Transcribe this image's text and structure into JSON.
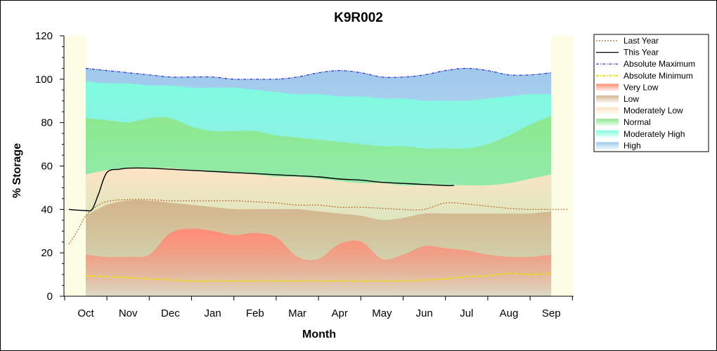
{
  "chart_data": {
    "type": "area",
    "title": "K9R002",
    "xlabel": "Month",
    "ylabel": "% Storage",
    "ylim": [
      0,
      120
    ],
    "yticks": [
      0,
      20,
      40,
      60,
      80,
      100,
      120
    ],
    "categories": [
      "Oct",
      "Nov",
      "Dec",
      "Jan",
      "Feb",
      "Mar",
      "Apr",
      "May",
      "Jun",
      "Jul",
      "Aug",
      "Sep"
    ],
    "grid": false,
    "legend_position": "right",
    "x": [
      0,
      0.5,
      1,
      1.5,
      2,
      2.5,
      3,
      3.5,
      4,
      4.5,
      5,
      5.5,
      6,
      6.5,
      7,
      7.5,
      8,
      8.5,
      9,
      9.5,
      10,
      10.5,
      11
    ],
    "bands": [
      {
        "name": "Very Low",
        "color": "#ff8c78",
        "values": [
          19,
          18,
          18,
          19,
          29,
          31,
          30,
          28,
          29,
          27,
          18,
          17,
          24,
          25,
          17,
          19,
          23,
          22,
          21,
          19,
          18,
          18,
          19
        ]
      },
      {
        "name": "Low",
        "color": "#d2b48c",
        "values": [
          37,
          42,
          44,
          44,
          43,
          42,
          41,
          40,
          40,
          40,
          40,
          39,
          38,
          37,
          35,
          36,
          38,
          38,
          38,
          38,
          38,
          38,
          39
        ]
      },
      {
        "name": "Moderately Low",
        "color": "#ffe4c4",
        "values": [
          56,
          58,
          59,
          59,
          59,
          58,
          57,
          57,
          56,
          55,
          55,
          54,
          53,
          52,
          52,
          51,
          51,
          51,
          51,
          51,
          52,
          54,
          56
        ]
      },
      {
        "name": "Normal",
        "color": "#8ee88e",
        "values": [
          82,
          81,
          80,
          82,
          82,
          78,
          76,
          76,
          76,
          74,
          73,
          72,
          71,
          70,
          69,
          69,
          68,
          68,
          68,
          70,
          74,
          79,
          83
        ]
      },
      {
        "name": "Moderately High",
        "color": "#7ffce0",
        "values": [
          99,
          98,
          98,
          97,
          97,
          96,
          96,
          96,
          95,
          94,
          93,
          93,
          92,
          92,
          91,
          91,
          90,
          90,
          90,
          91,
          92,
          93,
          93
        ]
      },
      {
        "name": "High",
        "color": "#9ec8ec",
        "values": [
          105,
          104,
          103,
          102,
          101,
          101,
          101,
          100,
          100,
          100,
          101,
          103,
          104,
          103,
          101,
          101,
          102,
          104,
          105,
          104,
          102,
          102,
          103
        ]
      }
    ],
    "series": [
      {
        "name": "Last Year",
        "color": "#b86a2c",
        "style": "dotted",
        "x": [
          -0.4,
          -0.2,
          0,
          0.3,
          0.6,
          1,
          1.5,
          2,
          2.5,
          3,
          3.5,
          4,
          4.5,
          5,
          5.5,
          6,
          6.5,
          7,
          7.5,
          8,
          8.5,
          9,
          9.5,
          10,
          10.5,
          11,
          11.4
        ],
        "y": [
          24,
          30,
          37,
          42,
          44,
          44.5,
          44.5,
          44,
          44,
          44,
          44,
          43.5,
          43,
          42,
          42,
          41,
          41,
          40.5,
          40,
          40,
          43,
          42.5,
          41.5,
          40.5,
          40,
          40,
          40
        ]
      },
      {
        "name": "This Year",
        "color": "#000000",
        "style": "solid",
        "x": [
          -0.4,
          -0.2,
          0,
          0.15,
          0.3,
          0.5,
          0.8,
          1,
          1.5,
          2,
          2.5,
          3,
          3.5,
          4,
          4.5,
          5,
          5.5,
          6,
          6.5,
          7,
          7.5,
          8,
          8.5,
          8.7
        ],
        "y": [
          40,
          39.7,
          39.5,
          40,
          47,
          57,
          58.5,
          59,
          59,
          58.5,
          58,
          57.5,
          57,
          56.5,
          56,
          55.5,
          55,
          54,
          53.5,
          52.5,
          52,
          51.5,
          51,
          51
        ]
      },
      {
        "name": "Absolute Maximum",
        "color": "#1e2ad8",
        "style": "dashdot",
        "x": [
          0,
          0.5,
          1,
          1.5,
          2,
          2.5,
          3,
          3.5,
          4,
          4.5,
          5,
          5.5,
          6,
          6.5,
          7,
          7.5,
          8,
          8.5,
          9,
          9.5,
          10,
          10.5,
          11
        ],
        "y": [
          105,
          104,
          103,
          102,
          101,
          101,
          101,
          100,
          100,
          100,
          101,
          103,
          104,
          103,
          101,
          101,
          102,
          104,
          105,
          104,
          102,
          102,
          103
        ]
      },
      {
        "name": "Absolute Minimum",
        "color": "#f2e000",
        "style": "dashdot",
        "x": [
          0,
          0.5,
          1,
          1.5,
          2,
          2.5,
          3,
          3.5,
          4,
          4.5,
          5,
          5.5,
          6,
          6.5,
          7,
          7.5,
          8,
          8.5,
          9,
          9.5,
          10,
          10.5,
          11
        ],
        "y": [
          9.5,
          9,
          8.5,
          8,
          7.5,
          7,
          7,
          7,
          7,
          7,
          7,
          7,
          7,
          7,
          7,
          7,
          7.5,
          8,
          9,
          9.5,
          10.5,
          10,
          10.5
        ]
      }
    ],
    "legend": [
      {
        "label": "Last Year",
        "kind": "line",
        "color": "#b86a2c",
        "style": "dotted"
      },
      {
        "label": "This Year",
        "kind": "line",
        "color": "#000000",
        "style": "solid"
      },
      {
        "label": "Absolute Maximum",
        "kind": "line",
        "color": "#1e2ad8",
        "style": "dashdot"
      },
      {
        "label": "Absolute Minimum",
        "kind": "line",
        "color": "#f2e000",
        "style": "dashdot"
      },
      {
        "label": "Very Low",
        "kind": "patch",
        "color": "#ff8c78"
      },
      {
        "label": "Low",
        "kind": "patch",
        "color": "#d2b48c"
      },
      {
        "label": "Moderately Low",
        "kind": "patch",
        "color": "#ffe4c4"
      },
      {
        "label": "Normal",
        "kind": "patch",
        "color": "#8ee88e"
      },
      {
        "label": "Moderately High",
        "kind": "patch",
        "color": "#7ffce0"
      },
      {
        "label": "High",
        "kind": "patch",
        "color": "#9ec8ec"
      }
    ],
    "plot_background": "#fdfde6"
  }
}
